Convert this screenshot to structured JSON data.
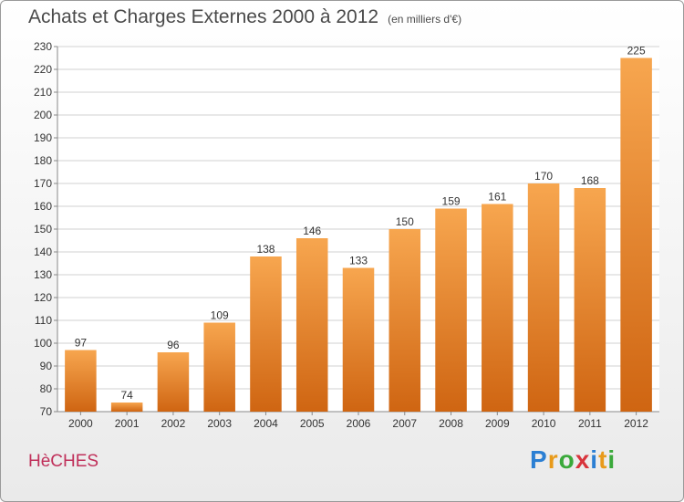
{
  "header": {
    "title": "Achats et Charges Externes 2000 à 2012",
    "subtitle": "(en milliers d'€)"
  },
  "footer": {
    "city": "HèCHES",
    "logo": {
      "letters": [
        "P",
        "r",
        "o",
        "x",
        "i",
        "t",
        "i"
      ],
      "colors": [
        "#2b7fd3",
        "#e89a1a",
        "#3aa93a",
        "#d8343c",
        "#2b7fd3",
        "#e89a1a",
        "#3aa93a"
      ]
    }
  },
  "colors": {
    "bar_top": "#f7a64f",
    "bar_bottom": "#cf6512",
    "grid": "#d2d2d2",
    "axis": "#888888",
    "text": "#333333"
  },
  "chart_data": {
    "type": "bar",
    "categories": [
      "2000",
      "2001",
      "2002",
      "2003",
      "2004",
      "2005",
      "2006",
      "2007",
      "2008",
      "2009",
      "2010",
      "2011",
      "2012"
    ],
    "values": [
      97,
      74,
      96,
      109,
      138,
      146,
      133,
      150,
      159,
      161,
      170,
      168,
      225
    ],
    "ylim": [
      70,
      230
    ],
    "yticks": [
      70,
      80,
      90,
      100,
      110,
      120,
      130,
      140,
      150,
      160,
      170,
      180,
      190,
      200,
      210,
      220,
      230
    ],
    "grid": true
  }
}
